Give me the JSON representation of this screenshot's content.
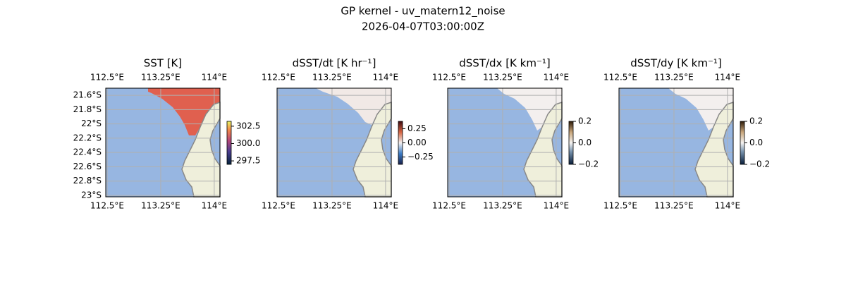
{
  "title": "GP kernel - uv_matern12_noise",
  "subtitle": "2026-04-07T03:00:00Z",
  "chart_data": [
    {
      "type": "map",
      "title": "SST [K]",
      "field_color": "#e0604f",
      "xlim": [
        112.48,
        114.08
      ],
      "ylim": [
        -23.02,
        -21.5
      ],
      "xticks": [
        {
          "value": 112.5,
          "label": "112.5°E"
        },
        {
          "value": 113.25,
          "label": "113.25°E"
        },
        {
          "value": 114,
          "label": "114°E"
        }
      ],
      "yticks": [
        {
          "value": -21.6,
          "label": "21.6°S"
        },
        {
          "value": -21.8,
          "label": "21.8°S"
        },
        {
          "value": -22,
          "label": "22°S"
        },
        {
          "value": -22.2,
          "label": "22.2°S"
        },
        {
          "value": -22.4,
          "label": "22.4°S"
        },
        {
          "value": -22.6,
          "label": "22.6°S"
        },
        {
          "value": -22.8,
          "label": "22.8°S"
        },
        {
          "value": -23,
          "label": "23°S"
        }
      ],
      "colorbar": {
        "cmap": "thermal",
        "lim": [
          297.0,
          303.2
        ],
        "ticks": [
          302.5,
          {
            "value": 300,
            "label": "300.0"
          },
          297.5
        ]
      }
    },
    {
      "type": "map",
      "title": "dSST/dt [K hr⁻¹]",
      "field_color": "#f1e9e6",
      "xlim": [
        112.48,
        114.08
      ],
      "ylim": [
        -23.02,
        -21.5
      ],
      "xticks": [
        {
          "value": 112.5,
          "label": "112.5°E"
        },
        {
          "value": 113.25,
          "label": "113.25°E"
        },
        {
          "value": 114,
          "label": "114°E"
        }
      ],
      "colorbar": {
        "cmap": "balance",
        "lim": [
          -0.38,
          0.38
        ],
        "ticks": [
          0.25,
          {
            "value": 0,
            "label": "0.00"
          },
          {
            "value": -0.25,
            "label": "−0.25"
          }
        ]
      }
    },
    {
      "type": "map",
      "title": "dSST/dx [K km⁻¹]",
      "field_color": "#f3efee",
      "xlim": [
        112.48,
        114.08
      ],
      "ylim": [
        -23.02,
        -21.5
      ],
      "xticks": [
        {
          "value": 112.5,
          "label": "112.5°E"
        },
        {
          "value": 113.25,
          "label": "113.25°E"
        },
        {
          "value": 114,
          "label": "114°E"
        }
      ],
      "colorbar": {
        "cmap": "diff",
        "lim": [
          -0.2,
          0.2
        ],
        "ticks": [
          0.2,
          {
            "value": 0,
            "label": "0.0"
          },
          {
            "value": -0.2,
            "label": "−0.2"
          }
        ]
      }
    },
    {
      "type": "map",
      "title": "dSST/dy [K km⁻¹]",
      "field_color": "#f3efee",
      "xlim": [
        112.48,
        114.08
      ],
      "ylim": [
        -23.02,
        -21.5
      ],
      "xticks": [
        {
          "value": 112.5,
          "label": "112.5°E"
        },
        {
          "value": 113.25,
          "label": "113.25°E"
        },
        {
          "value": 114,
          "label": "114°E"
        }
      ],
      "colorbar": {
        "cmap": "diff",
        "lim": [
          -0.2,
          0.2
        ],
        "ticks": [
          0.2,
          {
            "value": 0,
            "label": "0.0"
          },
          {
            "value": -0.2,
            "label": "−0.2"
          }
        ]
      }
    }
  ]
}
